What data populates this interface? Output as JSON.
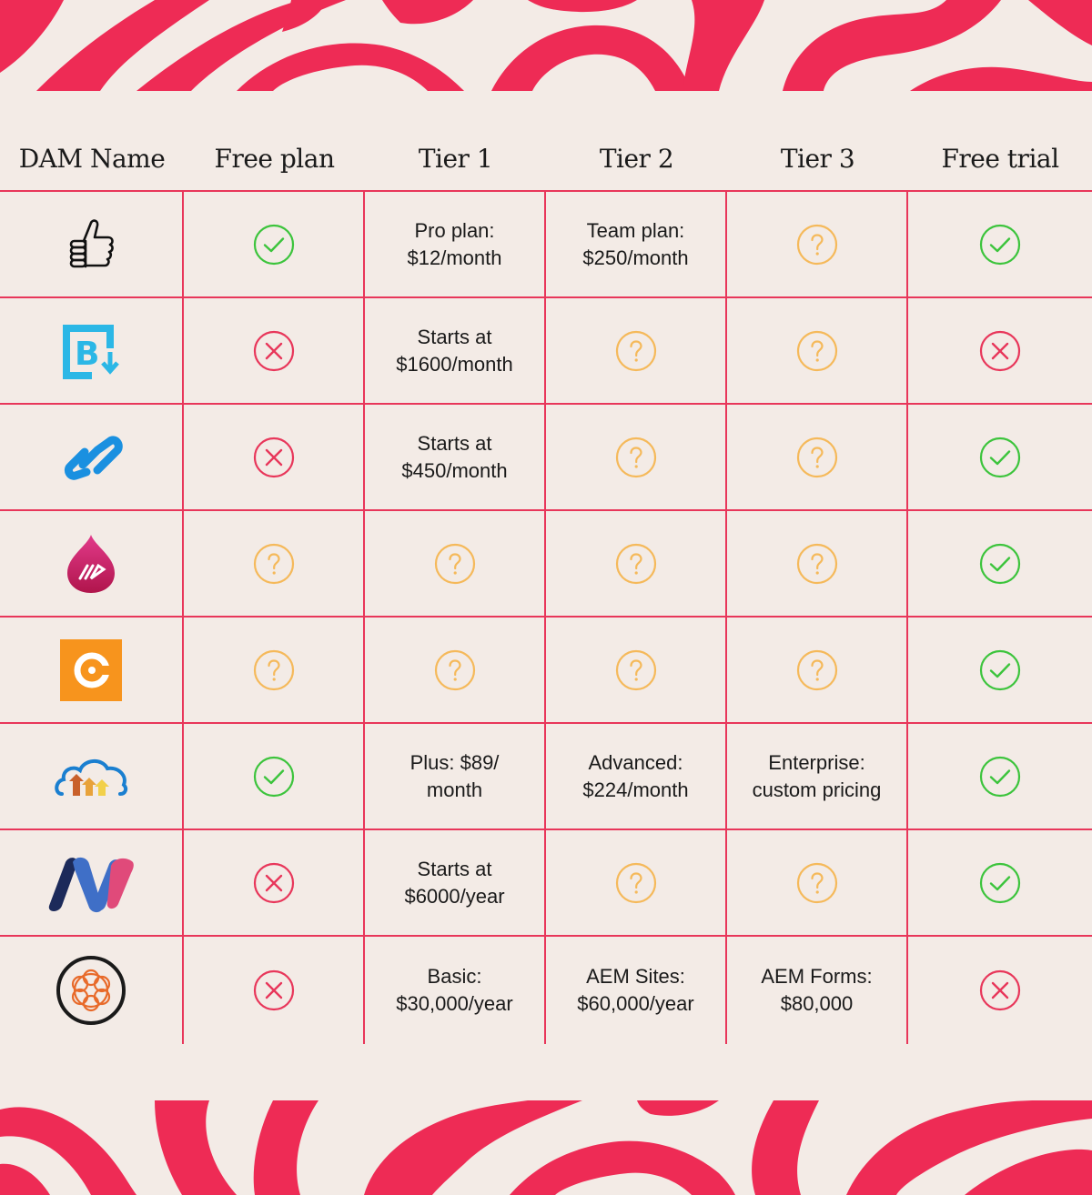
{
  "headers": [
    "DAM Name",
    "Free plan",
    "Tier 1",
    "Tier 2",
    "Tier 3",
    "Free trial"
  ],
  "colors": {
    "accent": "#e8365a",
    "background": "#f3ebe6",
    "yes": "#3cc43c",
    "no": "#e8365a",
    "unknown": "#f5b95a"
  },
  "rows": [
    {
      "logo": "thumbs-up-logo",
      "cells": [
        {
          "type": "yes"
        },
        {
          "type": "text",
          "value": "Pro plan:\n$12/month"
        },
        {
          "type": "text",
          "value": "Team plan:\n$250/month"
        },
        {
          "type": "unknown"
        },
        {
          "type": "yes"
        }
      ]
    },
    {
      "logo": "b-download-logo",
      "cells": [
        {
          "type": "no"
        },
        {
          "type": "text",
          "value": "Starts at\n$1600/month"
        },
        {
          "type": "unknown"
        },
        {
          "type": "unknown"
        },
        {
          "type": "no"
        }
      ]
    },
    {
      "logo": "blue-link-logo",
      "cells": [
        {
          "type": "no"
        },
        {
          "type": "text",
          "value": "Starts at\n$450/month"
        },
        {
          "type": "unknown"
        },
        {
          "type": "unknown"
        },
        {
          "type": "yes"
        }
      ]
    },
    {
      "logo": "magenta-drop-logo",
      "cells": [
        {
          "type": "unknown"
        },
        {
          "type": "unknown"
        },
        {
          "type": "unknown"
        },
        {
          "type": "unknown"
        },
        {
          "type": "yes"
        }
      ]
    },
    {
      "logo": "orange-c-logo",
      "cells": [
        {
          "type": "unknown"
        },
        {
          "type": "unknown"
        },
        {
          "type": "unknown"
        },
        {
          "type": "unknown"
        },
        {
          "type": "yes"
        }
      ]
    },
    {
      "logo": "cloud-upload-logo",
      "cells": [
        {
          "type": "yes"
        },
        {
          "type": "text",
          "value": "Plus: $89/\nmonth"
        },
        {
          "type": "text",
          "value": "Advanced:\n$224/month"
        },
        {
          "type": "text",
          "value": "Enterprise:\ncustom pricing"
        },
        {
          "type": "yes"
        }
      ]
    },
    {
      "logo": "mw-logo",
      "cells": [
        {
          "type": "no"
        },
        {
          "type": "text",
          "value": "Starts at\n$6000/year"
        },
        {
          "type": "unknown"
        },
        {
          "type": "unknown"
        },
        {
          "type": "yes"
        }
      ]
    },
    {
      "logo": "circle-ring-logo",
      "cells": [
        {
          "type": "no"
        },
        {
          "type": "text",
          "value": "Basic:\n$30,000/year"
        },
        {
          "type": "text",
          "value": "AEM Sites:\n$60,000/year"
        },
        {
          "type": "text",
          "value": "AEM Forms:\n$80,000"
        },
        {
          "type": "no"
        }
      ]
    }
  ]
}
